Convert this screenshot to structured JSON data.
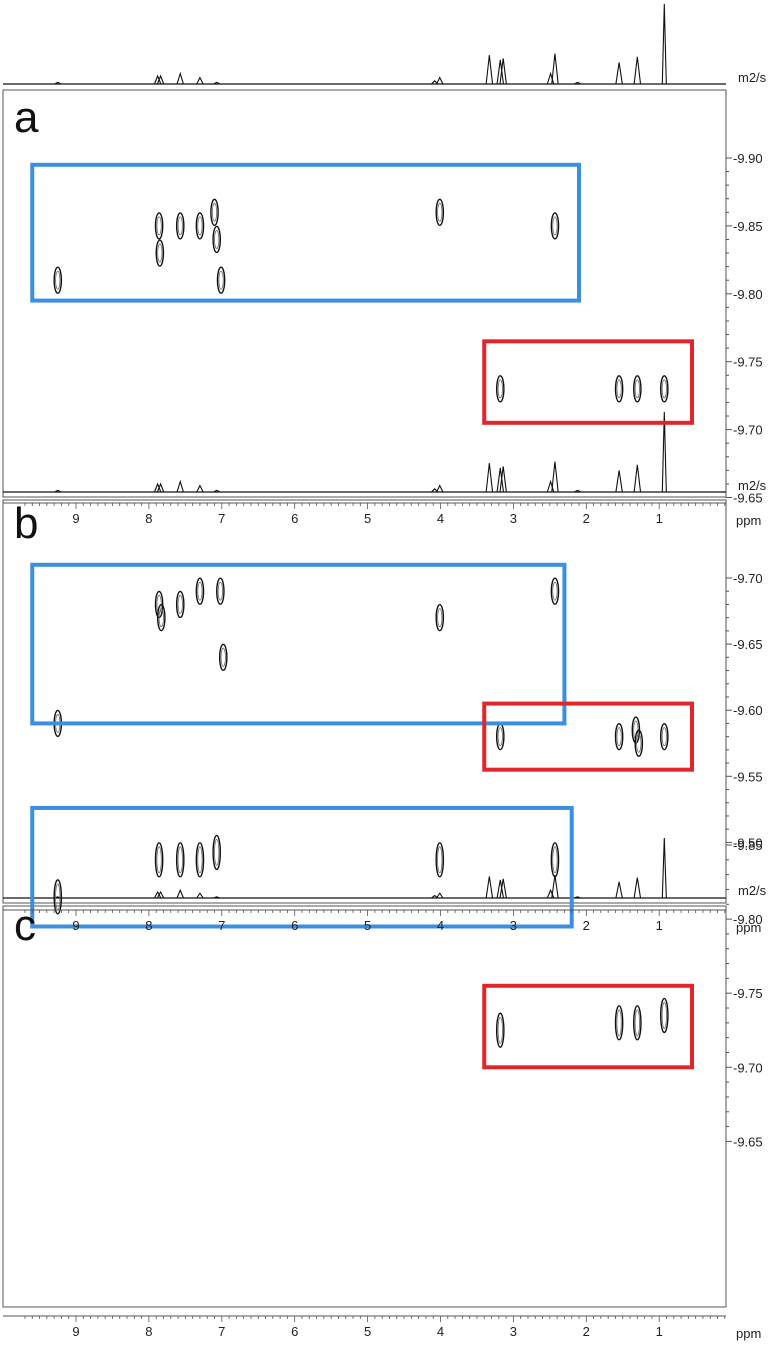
{
  "chart_data": [
    {
      "panel": "a",
      "type": "scatter",
      "subtype": "2D DOSY contour map",
      "x_unit": "ppm",
      "y_unit": "m2/s",
      "xlim": [
        9.65,
        0
      ],
      "ylim": [
        -9.65,
        -9.93
      ],
      "x_ticks": [
        9,
        8,
        7,
        6,
        5,
        4,
        3,
        2,
        1
      ],
      "y_ticks": [
        "-9.90",
        "-9.85",
        "-9.80",
        "-9.75",
        "-9.70",
        "-9.65"
      ],
      "y_tick_values": [
        -9.9,
        -9.85,
        -9.8,
        -9.75,
        -9.7,
        -9.65
      ],
      "peaks": [
        {
          "x": 7.86,
          "y": -9.85
        },
        {
          "x": 7.85,
          "y": -9.83
        },
        {
          "x": 7.57,
          "y": -9.85
        },
        {
          "x": 7.3,
          "y": -9.85
        },
        {
          "x": 7.1,
          "y": -9.86
        },
        {
          "x": 7.07,
          "y": -9.84
        },
        {
          "x": 7.01,
          "y": -9.81
        },
        {
          "x": 9.25,
          "y": -9.81
        },
        {
          "x": 4.01,
          "y": -9.86
        },
        {
          "x": 2.43,
          "y": -9.85
        },
        {
          "x": 3.18,
          "y": -9.73
        },
        {
          "x": 1.55,
          "y": -9.73
        },
        {
          "x": 1.3,
          "y": -9.73
        },
        {
          "x": 0.93,
          "y": -9.73
        }
      ],
      "boxes": [
        {
          "color": "#3b8ee0",
          "x": [
            9.6,
            2.1
          ],
          "y": [
            -9.895,
            -9.795
          ]
        },
        {
          "color": "#e0262a",
          "x": [
            3.4,
            0.55
          ],
          "y": [
            -9.765,
            -9.705
          ]
        }
      ]
    },
    {
      "panel": "b",
      "type": "scatter",
      "subtype": "2D DOSY contour map",
      "x_unit": "ppm",
      "y_unit": "m2/s",
      "xlim": [
        9.65,
        0
      ],
      "ylim": [
        -9.5,
        -9.74
      ],
      "x_ticks": [
        9,
        8,
        7,
        6,
        5,
        4,
        3,
        2,
        1
      ],
      "y_ticks": [
        "-9.70",
        "-9.65",
        "-9.60",
        "-9.55",
        "-9.50"
      ],
      "y_tick_values": [
        -9.7,
        -9.65,
        -9.6,
        -9.55,
        -9.5
      ],
      "peaks": [
        {
          "x": 7.86,
          "y": -9.68
        },
        {
          "x": 7.83,
          "y": -9.67
        },
        {
          "x": 7.57,
          "y": -9.68
        },
        {
          "x": 7.3,
          "y": -9.69
        },
        {
          "x": 7.02,
          "y": -9.69
        },
        {
          "x": 6.98,
          "y": -9.64
        },
        {
          "x": 9.25,
          "y": -9.59
        },
        {
          "x": 4.01,
          "y": -9.67
        },
        {
          "x": 2.43,
          "y": -9.69
        },
        {
          "x": 3.18,
          "y": -9.58
        },
        {
          "x": 1.55,
          "y": -9.58
        },
        {
          "x": 1.32,
          "y": -9.585
        },
        {
          "x": 1.28,
          "y": -9.575
        },
        {
          "x": 0.93,
          "y": -9.58
        }
      ],
      "boxes": [
        {
          "color": "#3b8ee0",
          "x": [
            9.6,
            2.3
          ],
          "y": [
            -9.71,
            -9.59
          ]
        },
        {
          "color": "#e0262a",
          "x": [
            3.4,
            0.55
          ],
          "y": [
            -9.605,
            -9.555
          ]
        }
      ]
    },
    {
      "panel": "c",
      "type": "scatter",
      "subtype": "2D DOSY contour map",
      "x_unit": "ppm",
      "y_unit": "",
      "xlim": [
        9.65,
        0
      ],
      "ylim": [
        -9.65,
        -9.89
      ],
      "x_ticks": [
        9,
        8,
        7,
        6,
        5,
        4,
        3,
        2,
        1
      ],
      "y_ticks": [
        "-9.85",
        "-9.80",
        "-9.75",
        "-9.70",
        "-9.65"
      ],
      "y_tick_values": [
        -9.85,
        -9.8,
        -9.75,
        -9.7,
        -9.65
      ],
      "peaks": [
        {
          "x": 7.86,
          "y": -9.84
        },
        {
          "x": 7.57,
          "y": -9.84
        },
        {
          "x": 7.3,
          "y": -9.84
        },
        {
          "x": 7.07,
          "y": -9.845
        },
        {
          "x": 9.25,
          "y": -9.815
        },
        {
          "x": 4.01,
          "y": -9.84
        },
        {
          "x": 2.43,
          "y": -9.84
        },
        {
          "x": 3.18,
          "y": -9.725
        },
        {
          "x": 1.55,
          "y": -9.73
        },
        {
          "x": 1.3,
          "y": -9.73
        },
        {
          "x": 0.93,
          "y": -9.735
        }
      ],
      "boxes": [
        {
          "color": "#3b8ee0",
          "x": [
            9.6,
            2.2
          ],
          "y": [
            -9.875,
            -9.795
          ]
        },
        {
          "color": "#e0262a",
          "x": [
            3.4,
            0.55
          ],
          "y": [
            -9.755,
            -9.7
          ]
        }
      ]
    },
    {
      "panel": "1H projection",
      "type": "line",
      "x_unit": "ppm",
      "peaks": [
        {
          "x": 9.25,
          "h": 0.02
        },
        {
          "x": 7.88,
          "h": 0.1
        },
        {
          "x": 7.84,
          "h": 0.1
        },
        {
          "x": 7.57,
          "h": 0.13
        },
        {
          "x": 7.3,
          "h": 0.08
        },
        {
          "x": 7.07,
          "h": 0.02
        },
        {
          "x": 4.08,
          "h": 0.04
        },
        {
          "x": 4.01,
          "h": 0.08
        },
        {
          "x": 3.33,
          "h": 0.36
        },
        {
          "x": 3.18,
          "h": 0.3
        },
        {
          "x": 3.14,
          "h": 0.32
        },
        {
          "x": 2.49,
          "h": 0.13
        },
        {
          "x": 2.43,
          "h": 0.38
        },
        {
          "x": 2.12,
          "h": 0.02
        },
        {
          "x": 1.55,
          "h": 0.27
        },
        {
          "x": 1.3,
          "h": 0.34
        },
        {
          "x": 0.93,
          "h": 1.0
        }
      ]
    }
  ],
  "panel_letters": {
    "a": "a",
    "b": "b",
    "c": "c"
  },
  "axis_units": {
    "ppm": "ppm",
    "diffusion": "m2/s"
  },
  "colors": {
    "blue_box": "#3b8ee0",
    "red_box": "#e0262a",
    "ink": "#111111"
  }
}
